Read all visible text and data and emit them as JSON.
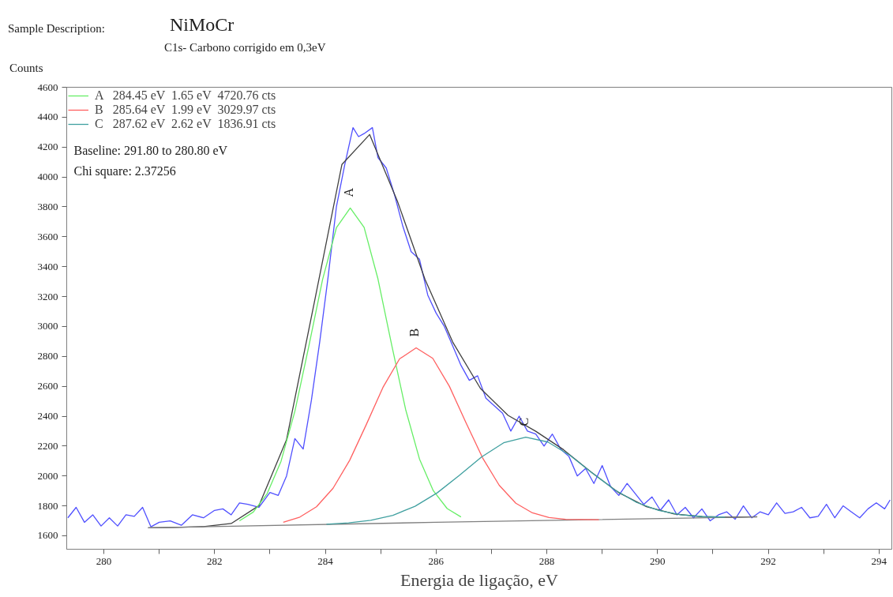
{
  "chart_data": {
    "type": "line",
    "title": "NiMoCr",
    "subtitle": "C1s- Carbono corrigido em 0,3eV",
    "xlabel": "Energia de ligação, eV",
    "ylabel": "Counts",
    "annotations": [
      "Sample Description:",
      "Baseline:  291.80 to  280.80 eV",
      "Chi square: 2.37256",
      {
        "text": "A",
        "x": 284.45,
        "y": 3792
      },
      {
        "text": "B",
        "x": 285.64,
        "y": 2857
      },
      {
        "text": "C",
        "x": 287.62,
        "y": 2260
      }
    ],
    "xlim": [
      279.33,
      294.23
    ],
    "ylim": [
      1510,
      4600
    ],
    "xticks": [
      280,
      {
        "value": 281,
        "label": null
      },
      282,
      {
        "value": 283,
        "label": null
      },
      284,
      {
        "value": 285,
        "label": null
      },
      286,
      {
        "value": 287,
        "label": null
      },
      288,
      {
        "value": 289,
        "label": null
      },
      290,
      {
        "value": 291,
        "label": null
      },
      292,
      {
        "value": 293,
        "label": null
      },
      294
    ],
    "yticks": [
      1600,
      1800,
      2000,
      2200,
      2400,
      2600,
      2800,
      3000,
      3200,
      3400,
      3600,
      3800,
      4000,
      4200,
      4400,
      4600
    ],
    "grid": false,
    "legend": "top left",
    "line_style": "solid",
    "marker": "none",
    "series": [
      {
        "color": "#5050ff",
        "x": [
          279.35,
          279.5,
          279.65,
          279.8,
          279.95,
          280.1,
          280.25,
          280.4,
          280.55,
          280.7,
          280.85,
          281.0,
          281.2,
          281.4,
          281.6,
          281.8,
          282.0,
          282.15,
          282.3,
          282.45,
          282.6,
          282.8,
          283.0,
          283.15,
          283.3,
          283.45,
          283.6,
          283.75,
          283.9,
          284.05,
          284.2,
          284.35,
          284.5,
          284.6,
          284.7,
          284.85,
          284.95,
          285.1,
          285.25,
          285.4,
          285.55,
          285.7,
          285.85,
          286.0,
          286.15,
          286.3,
          286.45,
          286.6,
          286.75,
          286.9,
          287.05,
          287.2,
          287.35,
          287.5,
          287.65,
          287.8,
          287.95,
          288.1,
          288.25,
          288.4,
          288.55,
          288.7,
          288.85,
          289.0,
          289.15,
          289.3,
          289.45,
          289.6,
          289.75,
          289.9,
          290.05,
          290.2,
          290.35,
          290.5,
          290.65,
          290.8,
          290.95,
          291.1,
          291.25,
          291.4,
          291.55,
          291.7,
          291.85,
          292.0,
          292.15,
          292.3,
          292.45,
          292.6,
          292.75,
          292.9,
          293.05,
          293.2,
          293.35,
          293.5,
          293.65,
          293.8,
          293.95,
          294.1,
          294.2
        ],
        "values": [
          1720,
          1790,
          1690,
          1740,
          1665,
          1720,
          1665,
          1740,
          1730,
          1790,
          1660,
          1690,
          1700,
          1670,
          1740,
          1720,
          1770,
          1780,
          1740,
          1820,
          1810,
          1790,
          1890,
          1870,
          2000,
          2250,
          2180,
          2510,
          2900,
          3330,
          3800,
          4080,
          4330,
          4270,
          4290,
          4330,
          4130,
          4060,
          3880,
          3670,
          3500,
          3450,
          3210,
          3090,
          3000,
          2870,
          2740,
          2640,
          2670,
          2520,
          2470,
          2420,
          2300,
          2400,
          2300,
          2280,
          2200,
          2280,
          2180,
          2130,
          2000,
          2050,
          1950,
          2070,
          1930,
          1870,
          1950,
          1880,
          1810,
          1860,
          1770,
          1840,
          1740,
          1790,
          1720,
          1780,
          1700,
          1740,
          1760,
          1710,
          1800,
          1720,
          1760,
          1740,
          1820,
          1750,
          1760,
          1790,
          1720,
          1730,
          1810,
          1720,
          1800,
          1760,
          1720,
          1780,
          1820,
          1780,
          1840
        ]
      },
      {
        "color": "#404040",
        "x": [
          280.8,
          281.3,
          281.8,
          282.3,
          282.8,
          283.3,
          283.8,
          284.3,
          284.8,
          285.3,
          285.8,
          286.3,
          286.8,
          287.3,
          287.8,
          288.3,
          288.8,
          289.3,
          289.8,
          290.3,
          290.8,
          291.3,
          291.8
        ],
        "values": [
          1653,
          1656,
          1661,
          1682,
          1801,
          2243,
          3159,
          4084,
          4284,
          3840,
          3315,
          2896,
          2586,
          2405,
          2299,
          2176,
          2026,
          1888,
          1794,
          1746,
          1728,
          1724,
          1727
        ]
      },
      {
        "color": "#808080",
        "x": [
          280.8,
          286.0,
          291.8
        ],
        "values": [
          1653,
          1690,
          1726
        ]
      },
      {
        "name": "A   284.45 eV  1.65 eV  4720.76 cts",
        "color": "#66ee66",
        "x": [
          282.45,
          282.7,
          282.95,
          283.2,
          283.45,
          283.7,
          283.95,
          284.2,
          284.45,
          284.7,
          284.95,
          285.2,
          285.45,
          285.7,
          285.95,
          286.2,
          286.45
        ],
        "values": [
          1700,
          1759,
          1882,
          2098,
          2432,
          2864,
          3313,
          3660,
          3792,
          3663,
          3319,
          2873,
          2445,
          2114,
          1901,
          1782,
          1726
        ]
      },
      {
        "name": "B   285.64 eV  1.99 eV  3029.97 cts",
        "color": "#ff6060",
        "x": [
          283.24,
          283.54,
          283.84,
          284.14,
          284.44,
          284.74,
          285.04,
          285.34,
          285.64,
          285.94,
          286.24,
          286.54,
          286.84,
          287.14,
          287.44,
          287.74,
          288.04,
          288.34,
          288.94
        ],
        "values": [
          1690,
          1725,
          1794,
          1918,
          2105,
          2344,
          2592,
          2783,
          2857,
          2787,
          2600,
          2356,
          2121,
          1938,
          1818,
          1753,
          1722,
          1710,
          1707
        ]
      },
      {
        "name": "C   287.62 eV  2.62 eV  1836.91 cts",
        "color": "#40a0a0",
        "x": [
          284.02,
          284.42,
          284.82,
          285.22,
          285.62,
          286.02,
          286.42,
          286.82,
          287.22,
          287.62,
          288.02,
          288.42,
          288.82,
          289.22,
          289.62,
          290.02,
          290.42,
          290.82,
          291.22
        ],
        "values": [
          1677,
          1686,
          1704,
          1737,
          1797,
          1887,
          2004,
          2127,
          2222,
          2260,
          2227,
          2137,
          2020,
          1909,
          1823,
          1769,
          1740,
          1728,
          1725
        ]
      }
    ]
  }
}
